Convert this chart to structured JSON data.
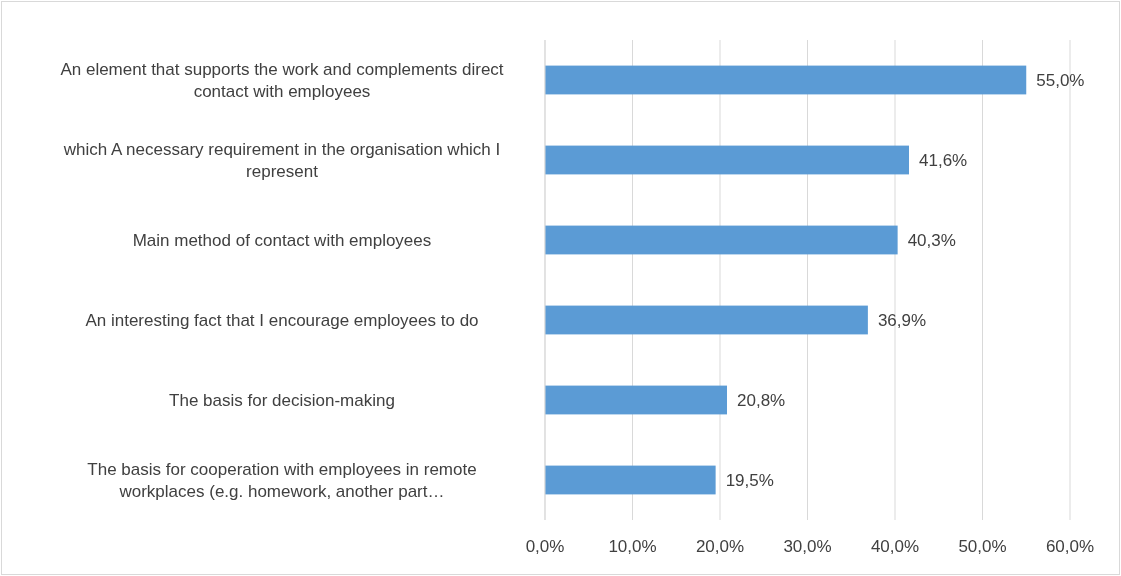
{
  "chart_data": {
    "type": "bar",
    "orientation": "horizontal",
    "categories": [
      "An element that supports the work and complements direct contact with employees",
      "which A necessary requirement in the organisation which I represent",
      "Main method of contact with employees",
      "An interesting fact that I encourage employees to do",
      "The basis for decision-making",
      "The basis for cooperation with employees in remote workplaces (e.g. homework, another part…"
    ],
    "values": [
      55.0,
      41.6,
      40.3,
      36.9,
      20.8,
      19.5
    ],
    "value_labels": [
      "55,0%",
      "41,6%",
      "40,3%",
      "36,9%",
      "20,8%",
      "19,5%"
    ],
    "color": "#5b9bd5",
    "xlim": [
      0,
      60
    ],
    "xticks": [
      {
        "value": 0,
        "label": "0,0%"
      },
      {
        "value": 10,
        "label": "10,0%"
      },
      {
        "value": 20,
        "label": "20,0%"
      },
      {
        "value": 30,
        "label": "30,0%"
      },
      {
        "value": 40,
        "label": "40,0%"
      },
      {
        "value": 50,
        "label": "50,0%"
      },
      {
        "value": 60,
        "label": "60,0%"
      }
    ],
    "grid": "x"
  }
}
